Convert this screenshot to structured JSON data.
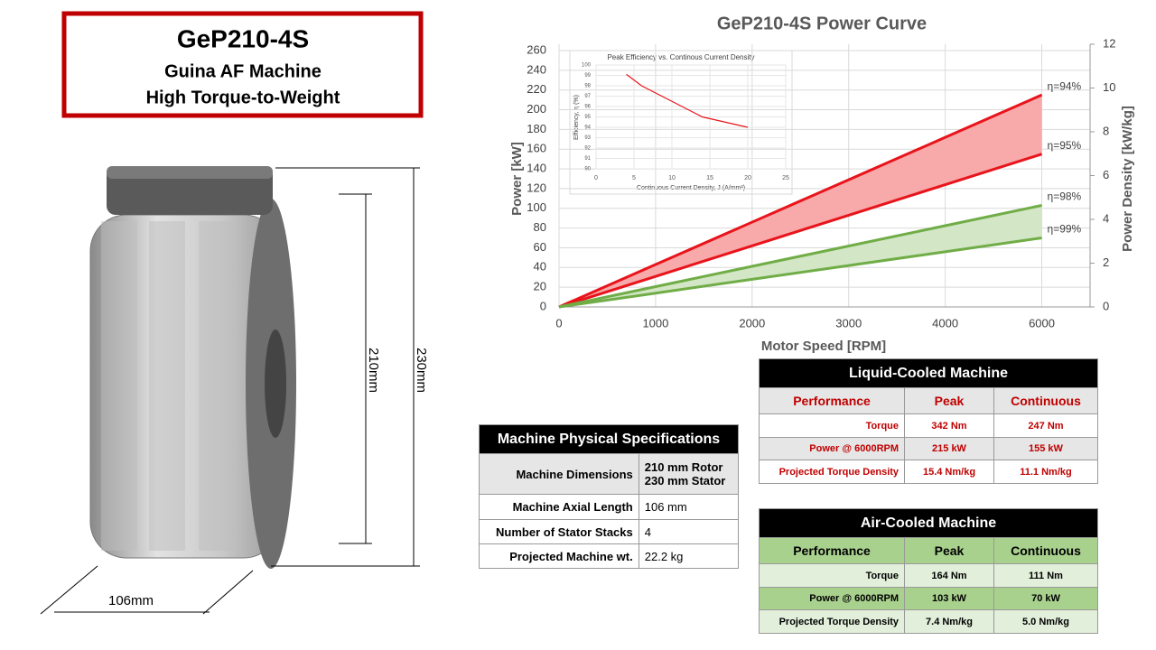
{
  "header": {
    "title": "GeP210-4S",
    "lines": [
      "Guina AF Machine",
      "High Torque-to-Weight"
    ]
  },
  "drawing": {
    "dimensions": [
      "210mm",
      "230mm",
      "106mm"
    ]
  },
  "chart_data": [
    {
      "type": "line",
      "title": "GeP210-4S Power Curve",
      "x_label": "Motor Speed [RPM]",
      "y_label": "Power [kW]",
      "y2_label": "Power Density [kW/kg]",
      "categories": [
        "0",
        "1000",
        "2000",
        "3000",
        "4000",
        "6000"
      ],
      "series": [
        {
          "name": "η=94%",
          "color": "#e8141b",
          "fill": "#f8a9a9",
          "values": [
            0,
            43,
            86,
            129,
            172,
            215
          ]
        },
        {
          "name": "η=95%",
          "color": "#e8141b",
          "values": [
            0,
            31,
            62,
            93,
            124,
            155
          ]
        },
        {
          "name": "η=98%",
          "color": "#70ad47",
          "fill": "#d3e6c6",
          "values": [
            0,
            20.6,
            41.2,
            61.8,
            82.4,
            103
          ]
        },
        {
          "name": "η=99%",
          "color": "#70ad47",
          "values": [
            0,
            14,
            28,
            42,
            56,
            70
          ]
        }
      ],
      "ylim": [
        0,
        260
      ],
      "yticks": [
        0,
        20,
        40,
        60,
        80,
        100,
        120,
        140,
        160,
        180,
        200,
        220,
        240,
        260
      ],
      "y2lim": [
        0,
        12
      ],
      "y2ticks": [
        0,
        2,
        4,
        6,
        8,
        10,
        12
      ],
      "grid": true
    },
    {
      "type": "line",
      "title": "Peak Efficiency vs. Continous Current Density",
      "x_label": "Continuous Current Density, J (A/mm²)",
      "y_label": "Efficiency, η (%)",
      "x": [
        4,
        6,
        14,
        20
      ],
      "series": [
        {
          "color": "#e8141b",
          "values": [
            99.1,
            98,
            95,
            94
          ]
        }
      ],
      "xlim": [
        0,
        25
      ],
      "xticks": [
        0,
        5,
        10,
        15,
        20,
        25
      ],
      "ylim": [
        90,
        100
      ],
      "yticks": [
        90,
        91,
        92,
        93,
        94,
        95,
        96,
        97,
        98,
        99,
        100
      ],
      "grid": true
    }
  ],
  "tables": [
    {
      "title": "Machine Physical Specifications",
      "rows": [
        [
          "Machine Dimensions",
          [
            "210 mm Rotor",
            "230 mm Stator"
          ]
        ],
        [
          "Machine Axial Length",
          "106 mm"
        ],
        [
          "Number of Stator Stacks",
          "4"
        ],
        [
          "Projected Machine wt.",
          "22.2 kg"
        ]
      ]
    },
    {
      "title": "Liquid-Cooled Machine",
      "header": [
        "Performance",
        "Peak",
        "Continuous"
      ],
      "rows": [
        [
          "Torque",
          "342 Nm",
          "247 Nm"
        ],
        [
          "Power @ 6000RPM",
          "215 kW",
          "155 kW"
        ],
        [
          "Projected Torque Density",
          "15.4 Nm/kg",
          "11.1 Nm/kg"
        ]
      ]
    },
    {
      "title": "Air-Cooled Machine",
      "header": [
        "Performance",
        "Peak",
        "Continuous"
      ],
      "rows": [
        [
          "Torque",
          "164 Nm",
          "111 Nm"
        ],
        [
          "Power @ 6000RPM",
          "103 kW",
          "70 kW"
        ],
        [
          "Projected Torque Density",
          "7.4 Nm/kg",
          "5.0 Nm/kg"
        ]
      ]
    }
  ]
}
